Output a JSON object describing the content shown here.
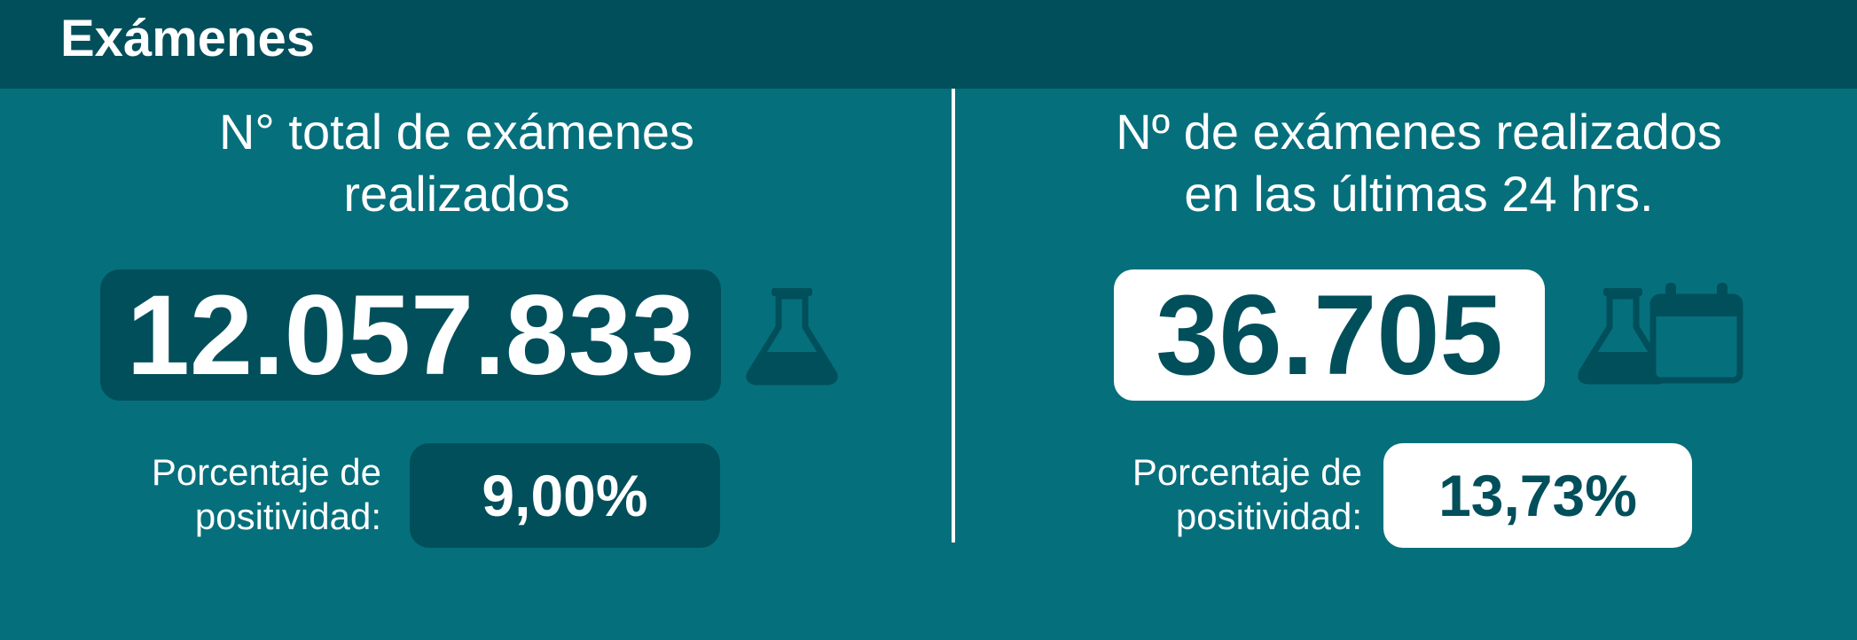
{
  "header": {
    "title": "Exámenes"
  },
  "colors": {
    "background": "#066f7c",
    "header": "#014f5b",
    "dark_box": "#014f5b",
    "light_box": "#ffffff",
    "text": "#ffffff"
  },
  "left_panel": {
    "title_line1": "N° total de exámenes",
    "title_line2": "realizados",
    "value": "12.057.833",
    "icon": "flask-icon",
    "positivity_label_line1": "Porcentaje de",
    "positivity_label_line2": "positividad:",
    "positivity_value": "9,00%"
  },
  "right_panel": {
    "title_line1": "Nº de exámenes realizados",
    "title_line2": "en las últimas 24 hrs.",
    "value": "36.705",
    "icon": "flask-calendar-icon",
    "positivity_label_line1": "Porcentaje de",
    "positivity_label_line2": "positividad:",
    "positivity_value": "13,73%"
  }
}
